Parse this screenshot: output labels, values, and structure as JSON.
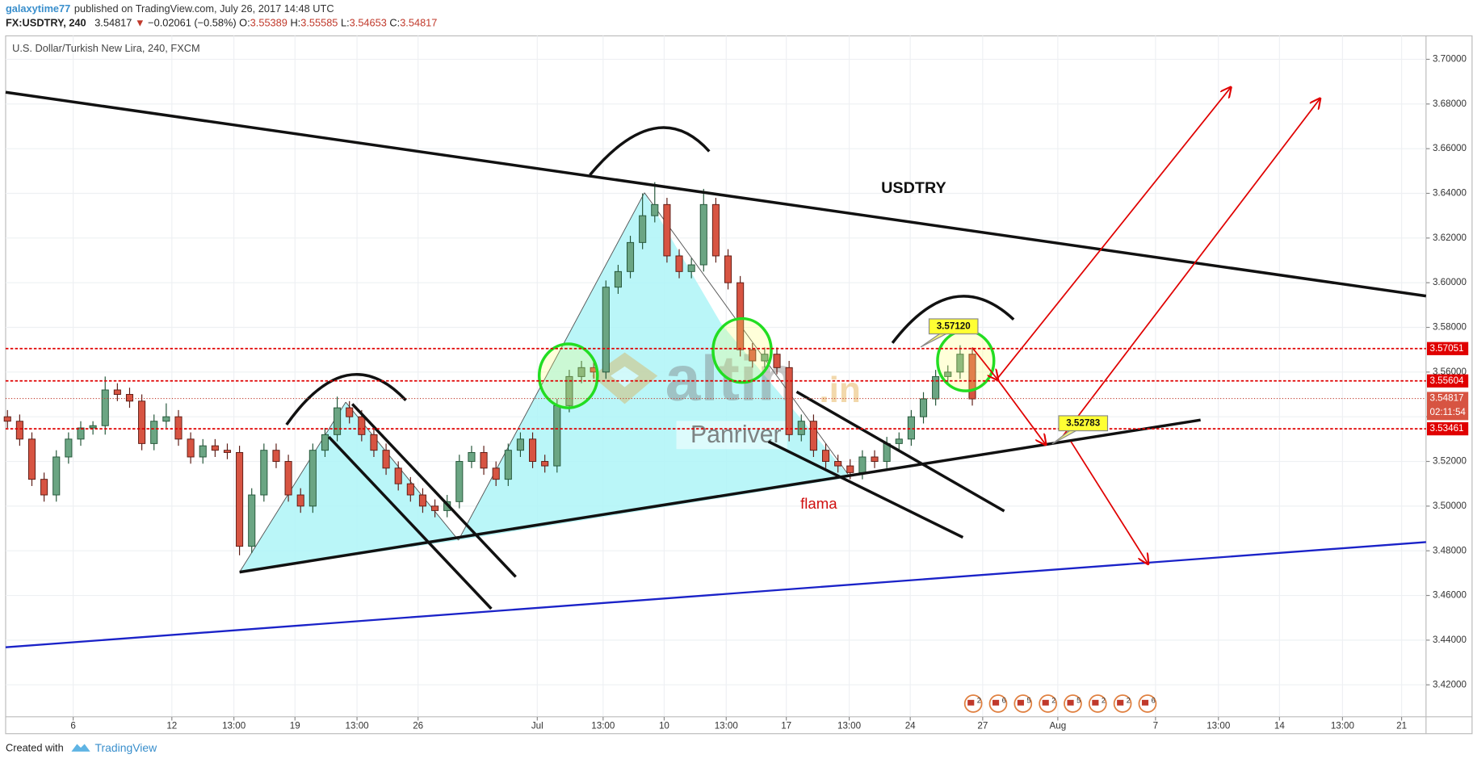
{
  "header": {
    "publisher": "galaxytime77",
    "published": "published on TradingView.com, July 26, 2017 14:48 UTC"
  },
  "quote": {
    "symbol": "FX:USDTRY, 240",
    "last": 3.54817,
    "arrow": "▼",
    "change": "−0.02061 (−0.58%)",
    "o_label": "O:",
    "o": 3.55389,
    "h_label": "H:",
    "h": 3.55585,
    "l_label": "L:",
    "l": 3.54653,
    "c_label": "C:",
    "c": 3.54817
  },
  "chart_data": {
    "type": "candlestick",
    "title": "U.S. Dollar/Turkish New Lira, 240, FXCM",
    "up_color": "#6ba583",
    "down_color": "#d75442",
    "ohlc": [
      [
        3.54,
        3.543,
        3.535,
        3.538
      ],
      [
        3.538,
        3.541,
        3.527,
        3.53
      ],
      [
        3.53,
        3.533,
        3.509,
        3.512
      ],
      [
        3.512,
        3.515,
        3.502,
        3.505
      ],
      [
        3.505,
        3.525,
        3.502,
        3.522
      ],
      [
        3.522,
        3.533,
        3.519,
        3.53
      ],
      [
        3.53,
        3.538,
        3.527,
        3.535
      ],
      [
        3.535,
        3.538,
        3.532,
        3.536
      ],
      [
        3.536,
        3.558,
        3.532,
        3.552
      ],
      [
        3.552,
        3.555,
        3.547,
        3.55
      ],
      [
        3.55,
        3.553,
        3.544,
        3.547
      ],
      [
        3.547,
        3.55,
        3.525,
        3.528
      ],
      [
        3.528,
        3.541,
        3.525,
        3.538
      ],
      [
        3.538,
        3.546,
        3.535,
        3.54
      ],
      [
        3.54,
        3.543,
        3.527,
        3.53
      ],
      [
        3.53,
        3.533,
        3.519,
        3.522
      ],
      [
        3.522,
        3.53,
        3.519,
        3.527
      ],
      [
        3.527,
        3.53,
        3.522,
        3.525
      ],
      [
        3.525,
        3.528,
        3.521,
        3.524
      ],
      [
        3.524,
        3.527,
        3.478,
        3.482
      ],
      [
        3.482,
        3.508,
        3.479,
        3.505
      ],
      [
        3.505,
        3.528,
        3.502,
        3.525
      ],
      [
        3.525,
        3.528,
        3.517,
        3.52
      ],
      [
        3.52,
        3.523,
        3.502,
        3.505
      ],
      [
        3.505,
        3.508,
        3.497,
        3.5
      ],
      [
        3.5,
        3.528,
        3.497,
        3.525
      ],
      [
        3.525,
        3.535,
        3.522,
        3.532
      ],
      [
        3.532,
        3.549,
        3.529,
        3.544
      ],
      [
        3.544,
        3.547,
        3.537,
        3.54
      ],
      [
        3.54,
        3.543,
        3.529,
        3.532
      ],
      [
        3.532,
        3.535,
        3.522,
        3.525
      ],
      [
        3.525,
        3.528,
        3.514,
        3.517
      ],
      [
        3.517,
        3.52,
        3.507,
        3.51
      ],
      [
        3.51,
        3.513,
        3.502,
        3.505
      ],
      [
        3.505,
        3.508,
        3.497,
        3.5
      ],
      [
        3.5,
        3.503,
        3.495,
        3.498
      ],
      [
        3.498,
        3.505,
        3.495,
        3.502
      ],
      [
        3.502,
        3.523,
        3.499,
        3.52
      ],
      [
        3.52,
        3.527,
        3.517,
        3.524
      ],
      [
        3.524,
        3.527,
        3.514,
        3.517
      ],
      [
        3.517,
        3.52,
        3.509,
        3.512
      ],
      [
        3.512,
        3.528,
        3.509,
        3.525
      ],
      [
        3.525,
        3.533,
        3.522,
        3.53
      ],
      [
        3.53,
        3.533,
        3.517,
        3.52
      ],
      [
        3.52,
        3.523,
        3.515,
        3.518
      ],
      [
        3.518,
        3.548,
        3.515,
        3.545
      ],
      [
        3.545,
        3.561,
        3.542,
        3.558
      ],
      [
        3.558,
        3.565,
        3.555,
        3.562
      ],
      [
        3.562,
        3.565,
        3.557,
        3.56
      ],
      [
        3.56,
        3.601,
        3.557,
        3.598
      ],
      [
        3.598,
        3.608,
        3.595,
        3.605
      ],
      [
        3.605,
        3.621,
        3.602,
        3.618
      ],
      [
        3.618,
        3.64,
        3.615,
        3.63
      ],
      [
        3.63,
        3.645,
        3.627,
        3.635
      ],
      [
        3.635,
        3.638,
        3.609,
        3.612
      ],
      [
        3.612,
        3.615,
        3.602,
        3.605
      ],
      [
        3.605,
        3.611,
        3.602,
        3.608
      ],
      [
        3.608,
        3.642,
        3.605,
        3.635
      ],
      [
        3.635,
        3.638,
        3.609,
        3.612
      ],
      [
        3.612,
        3.615,
        3.597,
        3.6
      ],
      [
        3.6,
        3.603,
        3.567,
        3.57
      ],
      [
        3.57,
        3.573,
        3.562,
        3.565
      ],
      [
        3.565,
        3.571,
        3.562,
        3.568
      ],
      [
        3.568,
        3.571,
        3.559,
        3.562
      ],
      [
        3.562,
        3.565,
        3.529,
        3.532
      ],
      [
        3.532,
        3.541,
        3.529,
        3.538
      ],
      [
        3.538,
        3.541,
        3.522,
        3.525
      ],
      [
        3.525,
        3.528,
        3.517,
        3.52
      ],
      [
        3.52,
        3.523,
        3.515,
        3.518
      ],
      [
        3.518,
        3.521,
        3.512,
        3.515
      ],
      [
        3.515,
        3.525,
        3.512,
        3.522
      ],
      [
        3.522,
        3.525,
        3.517,
        3.52
      ],
      [
        3.52,
        3.531,
        3.517,
        3.528
      ],
      [
        3.528,
        3.533,
        3.525,
        3.53
      ],
      [
        3.53,
        3.543,
        3.527,
        3.54
      ],
      [
        3.54,
        3.551,
        3.537,
        3.548
      ],
      [
        3.548,
        3.561,
        3.545,
        3.558
      ],
      [
        3.558,
        3.563,
        3.555,
        3.56
      ],
      [
        3.56,
        3.572,
        3.557,
        3.568
      ],
      [
        3.568,
        3.571,
        3.545,
        3.548
      ]
    ],
    "xlim": [
      -0.15,
      116.15
    ],
    "xticks": [
      {
        "value": 5.38,
        "label": "6"
      },
      {
        "value": 13.46,
        "label": "12"
      },
      {
        "value": 18.54,
        "label": "13:00"
      },
      {
        "value": 23.54,
        "label": "19"
      },
      {
        "value": 28.62,
        "label": "13:00"
      },
      {
        "value": 33.62,
        "label": "26"
      },
      {
        "value": 43.38,
        "label": "Jul"
      },
      {
        "value": 48.77,
        "label": "13:00"
      },
      {
        "value": 53.77,
        "label": "10"
      },
      {
        "value": 58.85,
        "label": "13:00"
      },
      {
        "value": 63.77,
        "label": "17"
      },
      {
        "value": 68.92,
        "label": "13:00"
      },
      {
        "value": 73.92,
        "label": "24"
      },
      {
        "value": 79.85,
        "label": "27"
      },
      {
        "value": 86.0,
        "label": "Aug"
      },
      {
        "value": 94.0,
        "label": "7"
      },
      {
        "value": 99.15,
        "label": "13:00"
      },
      {
        "value": 104.15,
        "label": "14"
      },
      {
        "value": 109.31,
        "label": "13:00"
      },
      {
        "value": 114.15,
        "label": "21"
      }
    ],
    "ylim": [
      3.4057,
      3.7105
    ],
    "yticks": [
      {
        "value": 3.42,
        "label": "3.42000"
      },
      {
        "value": 3.44,
        "label": "3.44000"
      },
      {
        "value": 3.46,
        "label": "3.46000"
      },
      {
        "value": 3.48,
        "label": "3.48000"
      },
      {
        "value": 3.5,
        "label": "3.50000"
      },
      {
        "value": 3.52,
        "label": "3.52000"
      },
      {
        "value": 3.54,
        "label": "3.54000"
      },
      {
        "value": 3.56,
        "label": "3.56000"
      },
      {
        "value": 3.58,
        "label": "3.58000"
      },
      {
        "value": 3.6,
        "label": "3.60000"
      },
      {
        "value": 3.62,
        "label": "3.62000"
      },
      {
        "value": 3.64,
        "label": "3.64000"
      },
      {
        "value": 3.66,
        "label": "3.66000"
      },
      {
        "value": 3.68,
        "label": "3.68000"
      },
      {
        "value": 3.7,
        "label": "3.70000"
      }
    ],
    "grid": true,
    "levels": [
      3.57051,
      3.55604,
      3.53461
    ],
    "level_color": "#e00000",
    "countdown": "02:11:54",
    "callouts": [
      {
        "value": 3.5712,
        "label": "3.57120"
      },
      {
        "value": 3.52783,
        "label": "3.52783"
      }
    ],
    "notes": [
      "USDTRY",
      "flama"
    ],
    "watermark": [
      "altin",
      ".in",
      "Panriver"
    ],
    "events": [
      2,
      6,
      5,
      2,
      5,
      2,
      2,
      6
    ]
  },
  "footer": {
    "created": "Created with",
    "brand": "TradingView"
  }
}
